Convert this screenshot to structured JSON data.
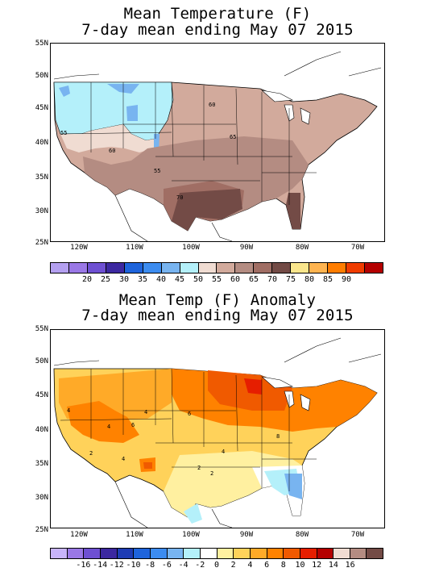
{
  "panels": [
    {
      "id": "mean-temperature",
      "title_line1": "Mean Temperature (F)",
      "title_line2": "7-day mean ending May 07 2015",
      "lat_labels": [
        "55N",
        "50N",
        "45N",
        "40N",
        "35N",
        "30N",
        "25N"
      ],
      "lon_labels": [
        "120W",
        "110W",
        "100W",
        "90W",
        "80W",
        "70W"
      ],
      "legend_colors": [
        "#b4a0f0",
        "#9a78e6",
        "#6e50d2",
        "#3c28a0",
        "#1e64dc",
        "#3c8cf0",
        "#78b4f0",
        "#b4f0fa",
        "#f0dcd2",
        "#d2aa9c",
        "#b48c82",
        "#a06e64",
        "#734b46",
        "#fae68c",
        "#ffb450",
        "#ff7d00",
        "#f03c00",
        "#b40000"
      ],
      "legend_labels": [
        "20",
        "25",
        "30",
        "35",
        "40",
        "45",
        "50",
        "55",
        "60",
        "65",
        "70",
        "75",
        "80",
        "85",
        "90"
      ],
      "contour_labels": [
        "55",
        "60",
        "65",
        "55",
        "70",
        "60"
      ]
    },
    {
      "id": "mean-temp-anomaly",
      "title_line1": "Mean Temp (F) Anomaly",
      "title_line2": "7-day mean ending May 07 2015",
      "lat_labels": [
        "55N",
        "50N",
        "45N",
        "40N",
        "35N",
        "30N",
        "25N"
      ],
      "lon_labels": [
        "120W",
        "110W",
        "100W",
        "90W",
        "80W",
        "70W"
      ],
      "legend_colors": [
        "#c8b4fa",
        "#9a78e6",
        "#6e50d2",
        "#3c28a0",
        "#1e3cb4",
        "#1e64dc",
        "#3c8cf0",
        "#78b4f0",
        "#b4f0fa",
        "#ffffff",
        "#fff0a0",
        "#ffd25a",
        "#ffaa28",
        "#ff8200",
        "#f05a00",
        "#e61e00",
        "#b40000",
        "#f0dcd2",
        "#b48c82",
        "#734b46"
      ],
      "legend_labels": [
        "-16",
        "-14",
        "-12",
        "-10",
        "-8",
        "-6",
        "-4",
        "-2",
        "0",
        "2",
        "4",
        "6",
        "8",
        "10",
        "12",
        "14",
        "16"
      ],
      "contour_labels": [
        "4",
        "4",
        "6",
        "4",
        "6",
        "2",
        "4",
        "4",
        "2",
        "2",
        "8"
      ]
    }
  ]
}
